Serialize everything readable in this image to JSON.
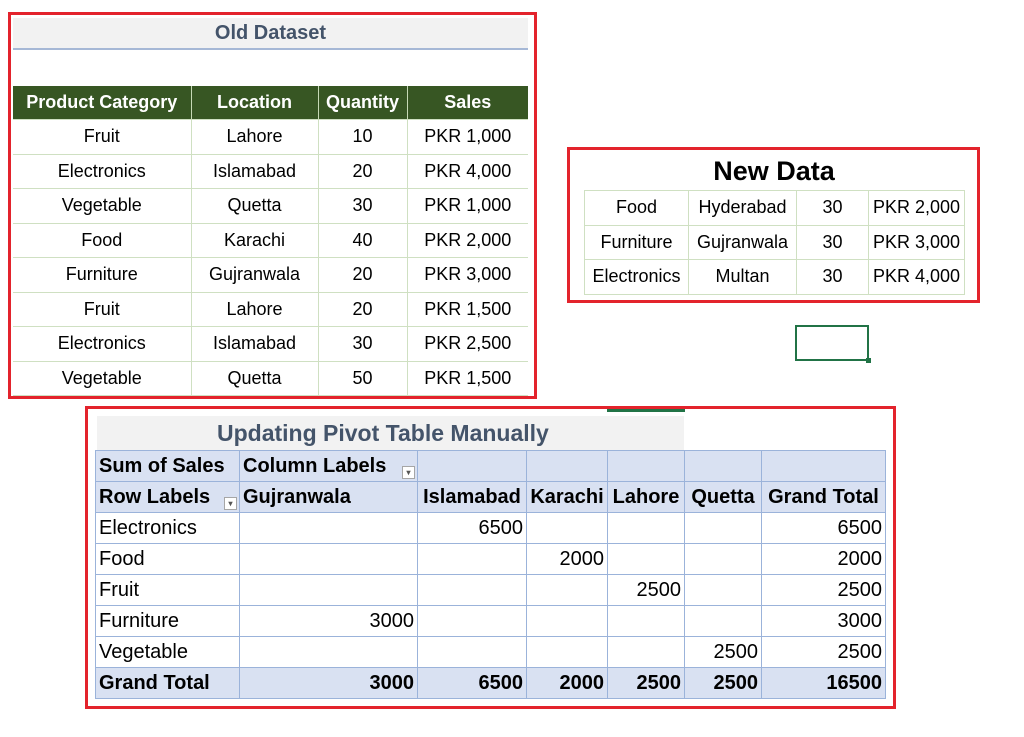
{
  "old_dataset": {
    "title": "Old Dataset",
    "headers": [
      "Product Category",
      "Location",
      "Quantity",
      "Sales"
    ],
    "rows": [
      [
        "Fruit",
        "Lahore",
        "10",
        "PKR 1,000"
      ],
      [
        "Electronics",
        "Islamabad",
        "20",
        "PKR 4,000"
      ],
      [
        "Vegetable",
        "Quetta",
        "30",
        "PKR 1,000"
      ],
      [
        "Food",
        "Karachi",
        "40",
        "PKR 2,000"
      ],
      [
        "Furniture",
        "Gujranwala",
        "20",
        "PKR 3,000"
      ],
      [
        "Fruit",
        "Lahore",
        "20",
        "PKR 1,500"
      ],
      [
        "Electronics",
        "Islamabad",
        "30",
        "PKR 2,500"
      ],
      [
        "Vegetable",
        "Quetta",
        "50",
        "PKR 1,500"
      ]
    ]
  },
  "new_data": {
    "title": "New Data",
    "rows": [
      [
        "Food",
        "Hyderabad",
        "30",
        "PKR 2,000"
      ],
      [
        "Furniture",
        "Gujranwala",
        "30",
        "PKR 3,000"
      ],
      [
        "Electronics",
        "Multan",
        "30",
        "PKR 4,000"
      ]
    ]
  },
  "pivot": {
    "title": "Updating Pivot Table Manually",
    "value_label": "Sum of Sales",
    "column_labels": "Column Labels",
    "row_labels": "Row Labels",
    "columns": [
      "Gujranwala",
      "Islamabad",
      "Karachi",
      "Lahore",
      "Quetta",
      "Grand Total"
    ],
    "rows": [
      {
        "label": "Electronics",
        "values": [
          "",
          "6500",
          "",
          "",
          "",
          "6500"
        ]
      },
      {
        "label": "Food",
        "values": [
          "",
          "",
          "2000",
          "",
          "",
          "2000"
        ]
      },
      {
        "label": "Fruit",
        "values": [
          "",
          "",
          "",
          "2500",
          "",
          "2500"
        ]
      },
      {
        "label": "Furniture",
        "values": [
          "3000",
          "",
          "",
          "",
          "",
          "3000"
        ]
      },
      {
        "label": "Vegetable",
        "values": [
          "",
          "",
          "",
          "",
          "2500",
          "2500"
        ]
      }
    ],
    "grand_total": {
      "label": "Grand Total",
      "values": [
        "3000",
        "6500",
        "2000",
        "2500",
        "2500",
        "16500"
      ]
    }
  },
  "icons": {
    "filter": "filter-dropdown-icon"
  },
  "colors": {
    "frame": "#e3232c",
    "header_green": "#375623",
    "pivot_header": "#d9e1f2",
    "title_text": "#44546a",
    "selection": "#217346"
  }
}
